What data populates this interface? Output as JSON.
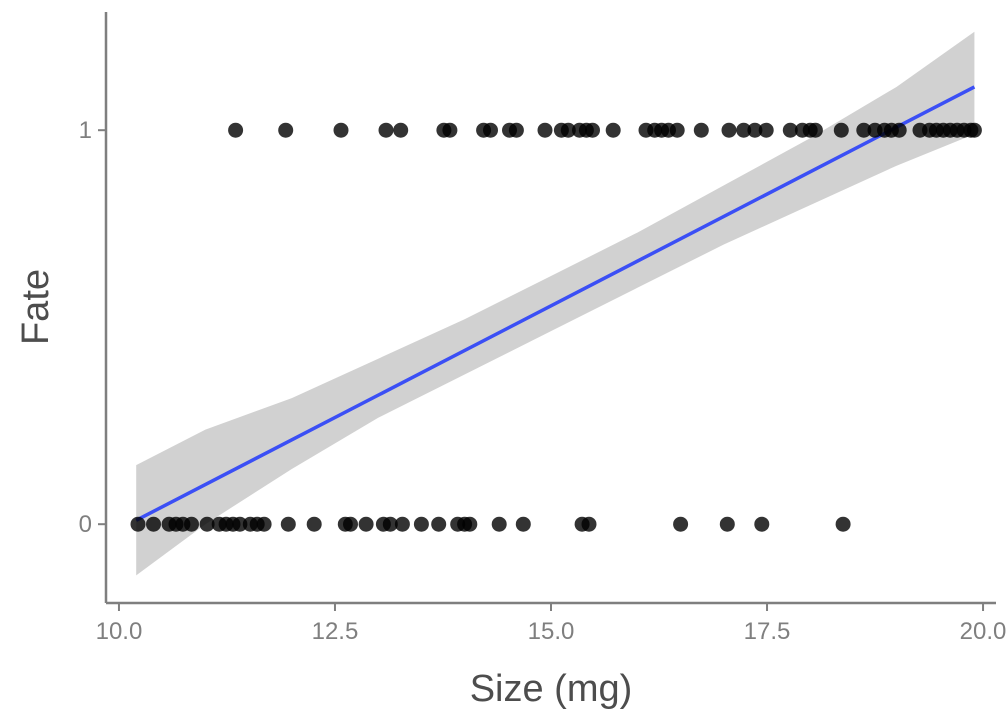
{
  "chart_data": {
    "type": "scatter",
    "title": "",
    "xlabel": "Size (mg)",
    "ylabel": "Fate",
    "xlim": [
      9.85,
      20.15
    ],
    "ylim": [
      -0.2,
      1.3
    ],
    "x_ticks": [
      10.0,
      12.5,
      15.0,
      17.5,
      20.0
    ],
    "x_tick_labels": [
      "10.0",
      "12.5",
      "15.0",
      "17.5",
      "20.0"
    ],
    "y_ticks": [
      0,
      1
    ],
    "y_tick_labels": [
      "0",
      "1"
    ],
    "grid": false,
    "legend": "none",
    "colors": {
      "points": "#000000",
      "fit_line": "#3b4ff5",
      "ribbon": "#cccccc",
      "axis": "#7f7f7f",
      "axis_title": "#4d4d4d"
    },
    "series": [
      {
        "kind": "points",
        "y": 1,
        "x": [
          11.35,
          11.93,
          12.57,
          13.09,
          13.26,
          13.76,
          13.83,
          14.22,
          14.3,
          14.52,
          14.6,
          14.93,
          15.12,
          15.2,
          15.33,
          15.41,
          15.48,
          15.72,
          16.1,
          16.2,
          16.28,
          16.36,
          16.46,
          16.74,
          17.06,
          17.23,
          17.36,
          17.49,
          17.77,
          17.91,
          18.0,
          18.06,
          18.36,
          18.62,
          18.75,
          18.86,
          18.94,
          19.03,
          19.27,
          19.38,
          19.46,
          19.54,
          19.62,
          19.7,
          19.78,
          19.86,
          19.9
        ]
      },
      {
        "kind": "points",
        "y": 0,
        "x": [
          10.22,
          10.4,
          10.58,
          10.66,
          10.74,
          10.84,
          11.02,
          11.16,
          11.24,
          11.32,
          11.4,
          11.52,
          11.6,
          11.68,
          11.96,
          12.26,
          12.62,
          12.68,
          12.86,
          13.06,
          13.14,
          13.28,
          13.5,
          13.7,
          13.92,
          14.0,
          14.06,
          14.4,
          14.68,
          15.36,
          15.44,
          16.5,
          17.04,
          17.44,
          18.38
        ]
      },
      {
        "kind": "fit",
        "x": [
          10.2,
          19.9
        ],
        "y": [
          0.01,
          1.11
        ]
      },
      {
        "kind": "ribbon",
        "x": [
          10.2,
          11.0,
          12.0,
          13.0,
          14.0,
          15.0,
          16.0,
          17.0,
          18.0,
          19.0,
          19.9
        ],
        "lower": [
          -0.13,
          0.0,
          0.14,
          0.27,
          0.38,
          0.49,
          0.6,
          0.71,
          0.81,
          0.91,
          0.99
        ],
        "upper": [
          0.15,
          0.24,
          0.32,
          0.42,
          0.52,
          0.63,
          0.74,
          0.86,
          0.98,
          1.11,
          1.25
        ]
      }
    ]
  }
}
